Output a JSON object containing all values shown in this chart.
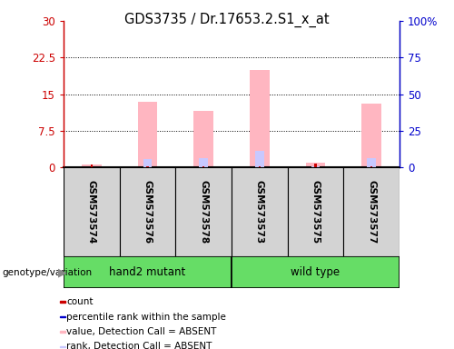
{
  "title": "GDS3735 / Dr.17653.2.S1_x_at",
  "samples": [
    "GSM573574",
    "GSM573576",
    "GSM573578",
    "GSM573573",
    "GSM573575",
    "GSM573577"
  ],
  "pink_values": [
    0.6,
    13.5,
    11.5,
    20.0,
    1.0,
    13.0
  ],
  "blue_values": [
    0.15,
    1.8,
    2.0,
    3.5,
    0.25,
    2.0
  ],
  "red_values": [
    0.55,
    0.3,
    0.3,
    0.3,
    0.8,
    0.3
  ],
  "dark_blue_values": [
    0.08,
    0.08,
    0.08,
    0.08,
    0.08,
    0.08
  ],
  "ylim_left": [
    0,
    30
  ],
  "ylim_right": [
    0,
    100
  ],
  "yticks_left": [
    0,
    7.5,
    15,
    22.5,
    30
  ],
  "yticks_right": [
    0,
    25,
    50,
    75,
    100
  ],
  "ytick_labels_left": [
    "0",
    "7.5",
    "15",
    "22.5",
    "30"
  ],
  "ytick_labels_right": [
    "0",
    "25",
    "50",
    "75",
    "100%"
  ],
  "left_tick_color": "#cc0000",
  "right_tick_color": "#0000cc",
  "bar_width": 0.35,
  "pink_color": "#FFB6C1",
  "blue_color": "#c8c8ff",
  "red_color": "#cc0000",
  "dark_blue_color": "#0000cc",
  "sample_box_color": "#d3d3d3",
  "group_color": "#66dd66",
  "legend_items": [
    {
      "color": "#cc0000",
      "label": "count"
    },
    {
      "color": "#0000cc",
      "label": "percentile rank within the sample"
    },
    {
      "color": "#FFB6C1",
      "label": "value, Detection Call = ABSENT"
    },
    {
      "color": "#c8c8ff",
      "label": "rank, Detection Call = ABSENT"
    }
  ]
}
